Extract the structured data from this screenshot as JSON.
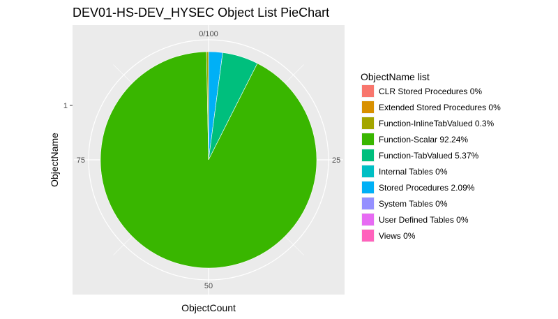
{
  "chart_data": {
    "type": "pie",
    "title": "DEV01-HS-DEV_HYSEC Object List PieChart",
    "xlabel": "ObjectCount",
    "ylabel": "ObjectName",
    "y_tick_label": "1",
    "theta_ticks": [
      {
        "value": 0,
        "label": "0/100"
      },
      {
        "value": 25,
        "label": "25"
      },
      {
        "value": 50,
        "label": "50"
      },
      {
        "value": 75,
        "label": "75"
      }
    ],
    "theta_range": [
      0,
      100
    ],
    "legend_title": "ObjectName list",
    "legend_position": "right",
    "series": [
      {
        "name": "CLR Stored Procedures 0%",
        "value": 0,
        "color": "#F8766D"
      },
      {
        "name": "Extended Stored Procedures 0%",
        "value": 0,
        "color": "#D89000"
      },
      {
        "name": "Function-InlineTabValued 0.3%",
        "value": 0.3,
        "color": "#A3A500"
      },
      {
        "name": "Function-Scalar 92.24%",
        "value": 92.24,
        "color": "#39B600"
      },
      {
        "name": "Function-TabValued 5.37%",
        "value": 5.37,
        "color": "#00BF7D"
      },
      {
        "name": "Internal Tables 0%",
        "value": 0,
        "color": "#00BFC4"
      },
      {
        "name": "Stored Procedures 2.09%",
        "value": 2.09,
        "color": "#00B0F6"
      },
      {
        "name": "System Tables 0%",
        "value": 0,
        "color": "#9590FF"
      },
      {
        "name": "User Defined Tables 0%",
        "value": 0,
        "color": "#E76BF3"
      },
      {
        "name": "Views 0%",
        "value": 0,
        "color": "#FF62BC"
      }
    ],
    "panel_background": "#EBEBEB",
    "grid_color": "#FFFFFF",
    "grid": true
  }
}
